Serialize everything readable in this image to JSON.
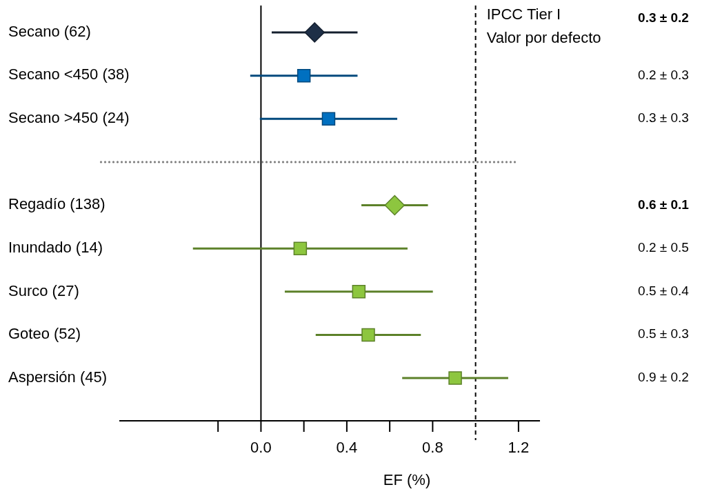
{
  "chart_data": {
    "type": "scatter",
    "orientation": "horizontal",
    "xlabel": "EF (%)",
    "categories": [
      "Secano (62)",
      "Secano <450 (38)",
      "Secano >450 (24)",
      null,
      "Regadío (138)",
      "Inundado (14)",
      "Surco (27)",
      "Goteo (52)",
      "Aspersión (45)"
    ],
    "series": [
      {
        "color": "#1e2f47",
        "marker": "diamond",
        "values": [
          0.25,
          null,
          null,
          null,
          null,
          null,
          null,
          null,
          null
        ],
        "errors": [
          0.2,
          null,
          null,
          null,
          null,
          null,
          null,
          null,
          null
        ]
      },
      {
        "color": "#0070c0",
        "marker": "square",
        "values": [
          null,
          0.2,
          0.315,
          null,
          null,
          null,
          null,
          null,
          null
        ],
        "errors": [
          null,
          0.25,
          0.32,
          null,
          null,
          null,
          null,
          null,
          null
        ]
      },
      {
        "color": "#8dc63f",
        "marker": "diamond",
        "values": [
          null,
          null,
          null,
          null,
          0.623,
          null,
          null,
          null,
          null
        ],
        "errors": [
          null,
          null,
          null,
          null,
          0.155,
          null,
          null,
          null,
          null
        ]
      },
      {
        "color": "#8dc63f",
        "marker": "square",
        "values": [
          null,
          null,
          null,
          null,
          null,
          0.183,
          0.456,
          0.5,
          0.905
        ],
        "errors": [
          null,
          null,
          null,
          null,
          null,
          0.5,
          0.345,
          0.245,
          0.247
        ]
      }
    ],
    "annotations": [
      "0.3 ± 0.2",
      "0.2 ± 0.3",
      "0.3 ± 0.3",
      "0.6 ± 0.1",
      "0.2 ± 0.5",
      "0.5 ± 0.4",
      "0.5 ± 0.3",
      "0.9 ± 0.2"
    ],
    "xlim": [
      -0.66,
      1.3
    ],
    "xticks": [
      {
        "value": -0.2,
        "label": null
      },
      {
        "value": 0,
        "label": "0.0"
      },
      {
        "value": 0.2,
        "label": null
      },
      0.4,
      {
        "value": 0.6,
        "label": null
      },
      0.8,
      1.2
    ],
    "ref_lines": [
      {
        "axis": "x",
        "value": 1.0,
        "label": "IPCC Tier I\nValor por defecto",
        "color": "#000000",
        "line_style": "dashed"
      }
    ]
  }
}
